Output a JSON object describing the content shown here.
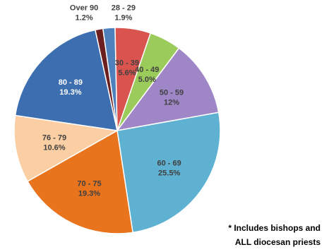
{
  "chart_data": {
    "type": "pie",
    "title": "",
    "start_angle_deg": -8,
    "slices": [
      {
        "label": "28 - 29",
        "percent_label": "1.9%",
        "value": 1.9,
        "color": "#4f81bd",
        "label_color": "#404040",
        "label_outside": true
      },
      {
        "label": "30 - 39",
        "percent_label": "5.6%",
        "value": 5.6,
        "color": "#d9534f",
        "label_color": "#404040",
        "label_outside": false
      },
      {
        "label": "40 - 49",
        "percent_label": "5.0%",
        "value": 5.0,
        "color": "#9bcb5a",
        "label_color": "#404040",
        "label_outside": false
      },
      {
        "label": "50 - 59",
        "percent_label": "12%",
        "value": 12,
        "color": "#9f87c7",
        "label_color": "#404040",
        "label_outside": false
      },
      {
        "label": "60 - 69",
        "percent_label": "25.5%",
        "value": 25.5,
        "color": "#5fb1d1",
        "label_color": "#404040",
        "label_outside": false
      },
      {
        "label": "70 - 75",
        "percent_label": "19.3%",
        "value": 19.3,
        "color": "#e8741e",
        "label_color": "#404040",
        "label_outside": false
      },
      {
        "label": "76 - 79",
        "percent_label": "10.6%",
        "value": 10.6,
        "color": "#fbcfa3",
        "label_color": "#404040",
        "label_outside": false
      },
      {
        "label": "80 - 89",
        "percent_label": "19.3%",
        "value": 19.3,
        "color": "#3d6fb0",
        "label_color": "#ffffff",
        "label_outside": false
      },
      {
        "label": "Over 90",
        "percent_label": "1.2%",
        "value": 1.2,
        "color": "#6b1f1f",
        "label_color": "#404040",
        "label_outside": true
      }
    ]
  },
  "footnote": {
    "line1": "* Includes bishops and",
    "line2": "ALL diocesan priests"
  }
}
